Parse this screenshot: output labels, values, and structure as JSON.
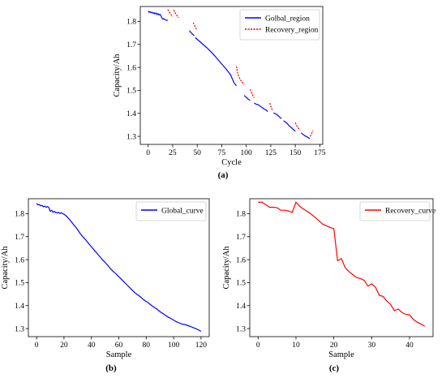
{
  "figure": {
    "captions": [
      "(a)",
      "(b)",
      "(c)"
    ]
  },
  "chart_data": [
    {
      "type": "line",
      "panel": "a",
      "xlabel": "Cycle",
      "ylabel": "Capacity/Ah",
      "xlim": [
        -8,
        178
      ],
      "ylim": [
        1.265,
        1.865
      ],
      "xticks": [
        0,
        25,
        50,
        75,
        100,
        125,
        150,
        175
      ],
      "yticks": [
        1.3,
        1.4,
        1.5,
        1.6,
        1.7,
        1.8
      ],
      "legend_position": "top-right",
      "series": [
        {
          "name": "Golbal_region",
          "color": "#0000ff",
          "segments": [
            {
              "x": [
                0,
                1,
                2,
                3,
                4,
                5,
                6,
                7,
                8,
                9,
                10,
                11,
                12,
                13,
                14,
                15,
                16,
                17,
                18,
                19,
                20
              ],
              "y": [
                1.845,
                1.84,
                1.843,
                1.838,
                1.84,
                1.835,
                1.838,
                1.833,
                1.837,
                1.83,
                1.834,
                1.828,
                1.831,
                1.826,
                1.815,
                1.81,
                1.812,
                1.808,
                1.806,
                1.805,
                1.805
              ]
            },
            {
              "x": [
                42,
                43,
                44,
                45,
                46,
                47
              ],
              "y": [
                1.76,
                1.755,
                1.75,
                1.746,
                1.742,
                1.738
              ]
            },
            {
              "x": [
                48,
                52,
                56,
                60,
                64,
                68,
                72,
                76,
                80,
                84,
                86,
                88,
                90
              ],
              "y": [
                1.73,
                1.715,
                1.7,
                1.685,
                1.668,
                1.65,
                1.63,
                1.61,
                1.59,
                1.568,
                1.548,
                1.53,
                1.52
              ]
            },
            {
              "x": [
                98,
                100,
                102,
                104
              ],
              "y": [
                1.478,
                1.47,
                1.462,
                1.456
              ]
            },
            {
              "x": [
                108,
                110,
                112,
                114,
                116,
                118,
                120,
                122
              ],
              "y": [
                1.445,
                1.44,
                1.438,
                1.432,
                1.426,
                1.42,
                1.415,
                1.408
              ]
            },
            {
              "x": [
                128,
                130,
                132,
                134,
                136
              ],
              "y": [
                1.402,
                1.398,
                1.392,
                1.384,
                1.378
              ]
            },
            {
              "x": [
                138,
                140,
                142,
                144,
                146,
                148,
                150
              ],
              "y": [
                1.368,
                1.362,
                1.355,
                1.345,
                1.338,
                1.33,
                1.322
              ]
            },
            {
              "x": [
                156,
                158,
                160,
                162,
                164,
                165
              ],
              "y": [
                1.315,
                1.308,
                1.302,
                1.298,
                1.292,
                1.29
              ]
            }
          ]
        },
        {
          "name": "Recovery_region",
          "color": "#ff0000",
          "segments": [
            {
              "x": [
                20,
                21,
                22,
                23,
                24,
                25
              ],
              "y": [
                1.852,
                1.845,
                1.838,
                1.832,
                1.826,
                1.82
              ]
            },
            {
              "x": [
                26,
                27,
                28,
                29,
                30,
                31
              ],
              "y": [
                1.85,
                1.842,
                1.834,
                1.828,
                1.822,
                1.816
              ]
            },
            {
              "x": [
                46,
                47,
                48,
                49,
                50
              ],
              "y": [
                1.795,
                1.785,
                1.776,
                1.768,
                1.762
              ]
            },
            {
              "x": [
                90,
                91,
                92,
                93,
                94,
                96,
                98
              ],
              "y": [
                1.605,
                1.58,
                1.565,
                1.555,
                1.545,
                1.535,
                1.525
              ]
            },
            {
              "x": [
                104,
                105,
                106,
                107,
                108
              ],
              "y": [
                1.505,
                1.495,
                1.485,
                1.476,
                1.468
              ]
            },
            {
              "x": [
                124,
                125,
                126,
                127
              ],
              "y": [
                1.445,
                1.432,
                1.42,
                1.412
              ]
            },
            {
              "x": [
                150,
                151,
                152,
                153,
                154,
                155
              ],
              "y": [
                1.36,
                1.35,
                1.342,
                1.336,
                1.332,
                1.328
              ]
            },
            {
              "x": [
                165,
                166,
                167,
                168
              ],
              "y": [
                1.3,
                1.305,
                1.315,
                1.325
              ]
            }
          ]
        }
      ]
    },
    {
      "type": "line",
      "panel": "b",
      "xlabel": "Sample",
      "ylabel": "Capacity/Ah",
      "xlim": [
        -6,
        126
      ],
      "ylim": [
        1.265,
        1.865
      ],
      "xticks": [
        0,
        20,
        40,
        60,
        80,
        100,
        120
      ],
      "yticks": [
        1.3,
        1.4,
        1.5,
        1.6,
        1.7,
        1.8
      ],
      "legend_position": "top-right",
      "series": [
        {
          "name": "Global_curve",
          "color": "#0000ff",
          "x": [
            0,
            1,
            2,
            3,
            4,
            5,
            6,
            7,
            8,
            9,
            10,
            11,
            12,
            13,
            14,
            15,
            16,
            17,
            18,
            19,
            20,
            22,
            24,
            26,
            28,
            30,
            32,
            34,
            36,
            38,
            40,
            42,
            44,
            46,
            48,
            50,
            52,
            54,
            56,
            58,
            60,
            62,
            64,
            66,
            68,
            70,
            72,
            74,
            76,
            78,
            80,
            82,
            84,
            86,
            88,
            90,
            92,
            94,
            96,
            98,
            100,
            102,
            104,
            106,
            108,
            110,
            112,
            114,
            116,
            118,
            120
          ],
          "y": [
            1.845,
            1.838,
            1.84,
            1.834,
            1.836,
            1.83,
            1.833,
            1.828,
            1.831,
            1.826,
            1.81,
            1.815,
            1.806,
            1.81,
            1.805,
            1.803,
            1.806,
            1.801,
            1.804,
            1.8,
            1.798,
            1.788,
            1.775,
            1.76,
            1.745,
            1.73,
            1.712,
            1.698,
            1.685,
            1.67,
            1.656,
            1.642,
            1.628,
            1.614,
            1.6,
            1.588,
            1.575,
            1.56,
            1.548,
            1.538,
            1.526,
            1.514,
            1.502,
            1.49,
            1.478,
            1.466,
            1.455,
            1.446,
            1.437,
            1.426,
            1.418,
            1.41,
            1.4,
            1.392,
            1.384,
            1.374,
            1.366,
            1.358,
            1.35,
            1.344,
            1.337,
            1.33,
            1.325,
            1.32,
            1.318,
            1.314,
            1.31,
            1.305,
            1.3,
            1.295,
            1.288
          ]
        }
      ]
    },
    {
      "type": "line",
      "panel": "c",
      "xlabel": "Sample",
      "ylabel": "Capacity/Ah",
      "xlim": [
        -2.2,
        46.2
      ],
      "ylim": [
        1.265,
        1.865
      ],
      "xticks": [
        0,
        10,
        20,
        30,
        40
      ],
      "yticks": [
        1.3,
        1.4,
        1.5,
        1.6,
        1.7,
        1.8
      ],
      "legend_position": "top-right",
      "series": [
        {
          "name": "Recovery_curve",
          "color": "#ff0000",
          "x": [
            0,
            1,
            2,
            3,
            4,
            5,
            6,
            7,
            8,
            9,
            10,
            11,
            12,
            13,
            14,
            15,
            16,
            17,
            18,
            19,
            20,
            21,
            22,
            23,
            24,
            25,
            26,
            27,
            28,
            29,
            30,
            31,
            32,
            33,
            34,
            35,
            36,
            37,
            38,
            39,
            40,
            41,
            42,
            43,
            44
          ],
          "y": [
            1.85,
            1.85,
            1.84,
            1.828,
            1.828,
            1.826,
            1.815,
            1.815,
            1.812,
            1.805,
            1.85,
            1.832,
            1.82,
            1.81,
            1.798,
            1.785,
            1.77,
            1.755,
            1.748,
            1.74,
            1.735,
            1.595,
            1.605,
            1.565,
            1.548,
            1.535,
            1.522,
            1.518,
            1.51,
            1.485,
            1.495,
            1.48,
            1.445,
            1.44,
            1.42,
            1.405,
            1.378,
            1.385,
            1.37,
            1.362,
            1.36,
            1.34,
            1.328,
            1.32,
            1.31
          ]
        }
      ]
    }
  ]
}
